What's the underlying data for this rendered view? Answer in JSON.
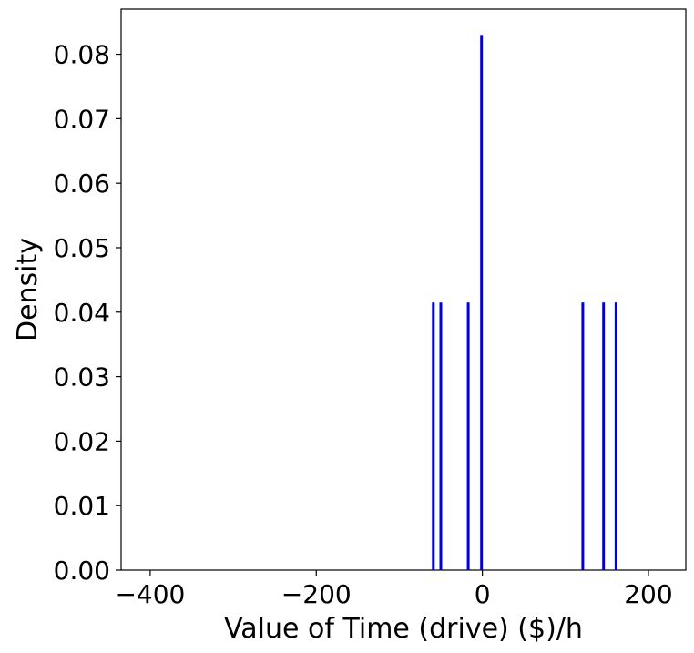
{
  "chart_data": {
    "type": "bar",
    "title": "",
    "xlabel": "Value of Time (drive) ($)/h",
    "ylabel": "Density",
    "xlim": [
      -435,
      245
    ],
    "ylim": [
      0,
      0.087
    ],
    "x_ticks": [
      -400,
      -200,
      0,
      200
    ],
    "x_tick_labels": [
      "−400",
      "−200",
      "0",
      "200"
    ],
    "y_ticks": [
      0.0,
      0.01,
      0.02,
      0.03,
      0.04,
      0.05,
      0.06,
      0.07,
      0.08
    ],
    "y_tick_labels": [
      "0.00",
      "0.01",
      "0.02",
      "0.03",
      "0.04",
      "0.05",
      "0.06",
      "0.07",
      "0.08"
    ],
    "bars": [
      {
        "x": -59,
        "value": 0.0415
      },
      {
        "x": -50,
        "value": 0.0415
      },
      {
        "x": -17,
        "value": 0.0415
      },
      {
        "x": -1,
        "value": 0.083
      },
      {
        "x": 121,
        "value": 0.0415
      },
      {
        "x": 146,
        "value": 0.0415
      },
      {
        "x": 161,
        "value": 0.0415
      }
    ],
    "bar_color": "#0000dd",
    "grid": false,
    "legend": "none"
  }
}
